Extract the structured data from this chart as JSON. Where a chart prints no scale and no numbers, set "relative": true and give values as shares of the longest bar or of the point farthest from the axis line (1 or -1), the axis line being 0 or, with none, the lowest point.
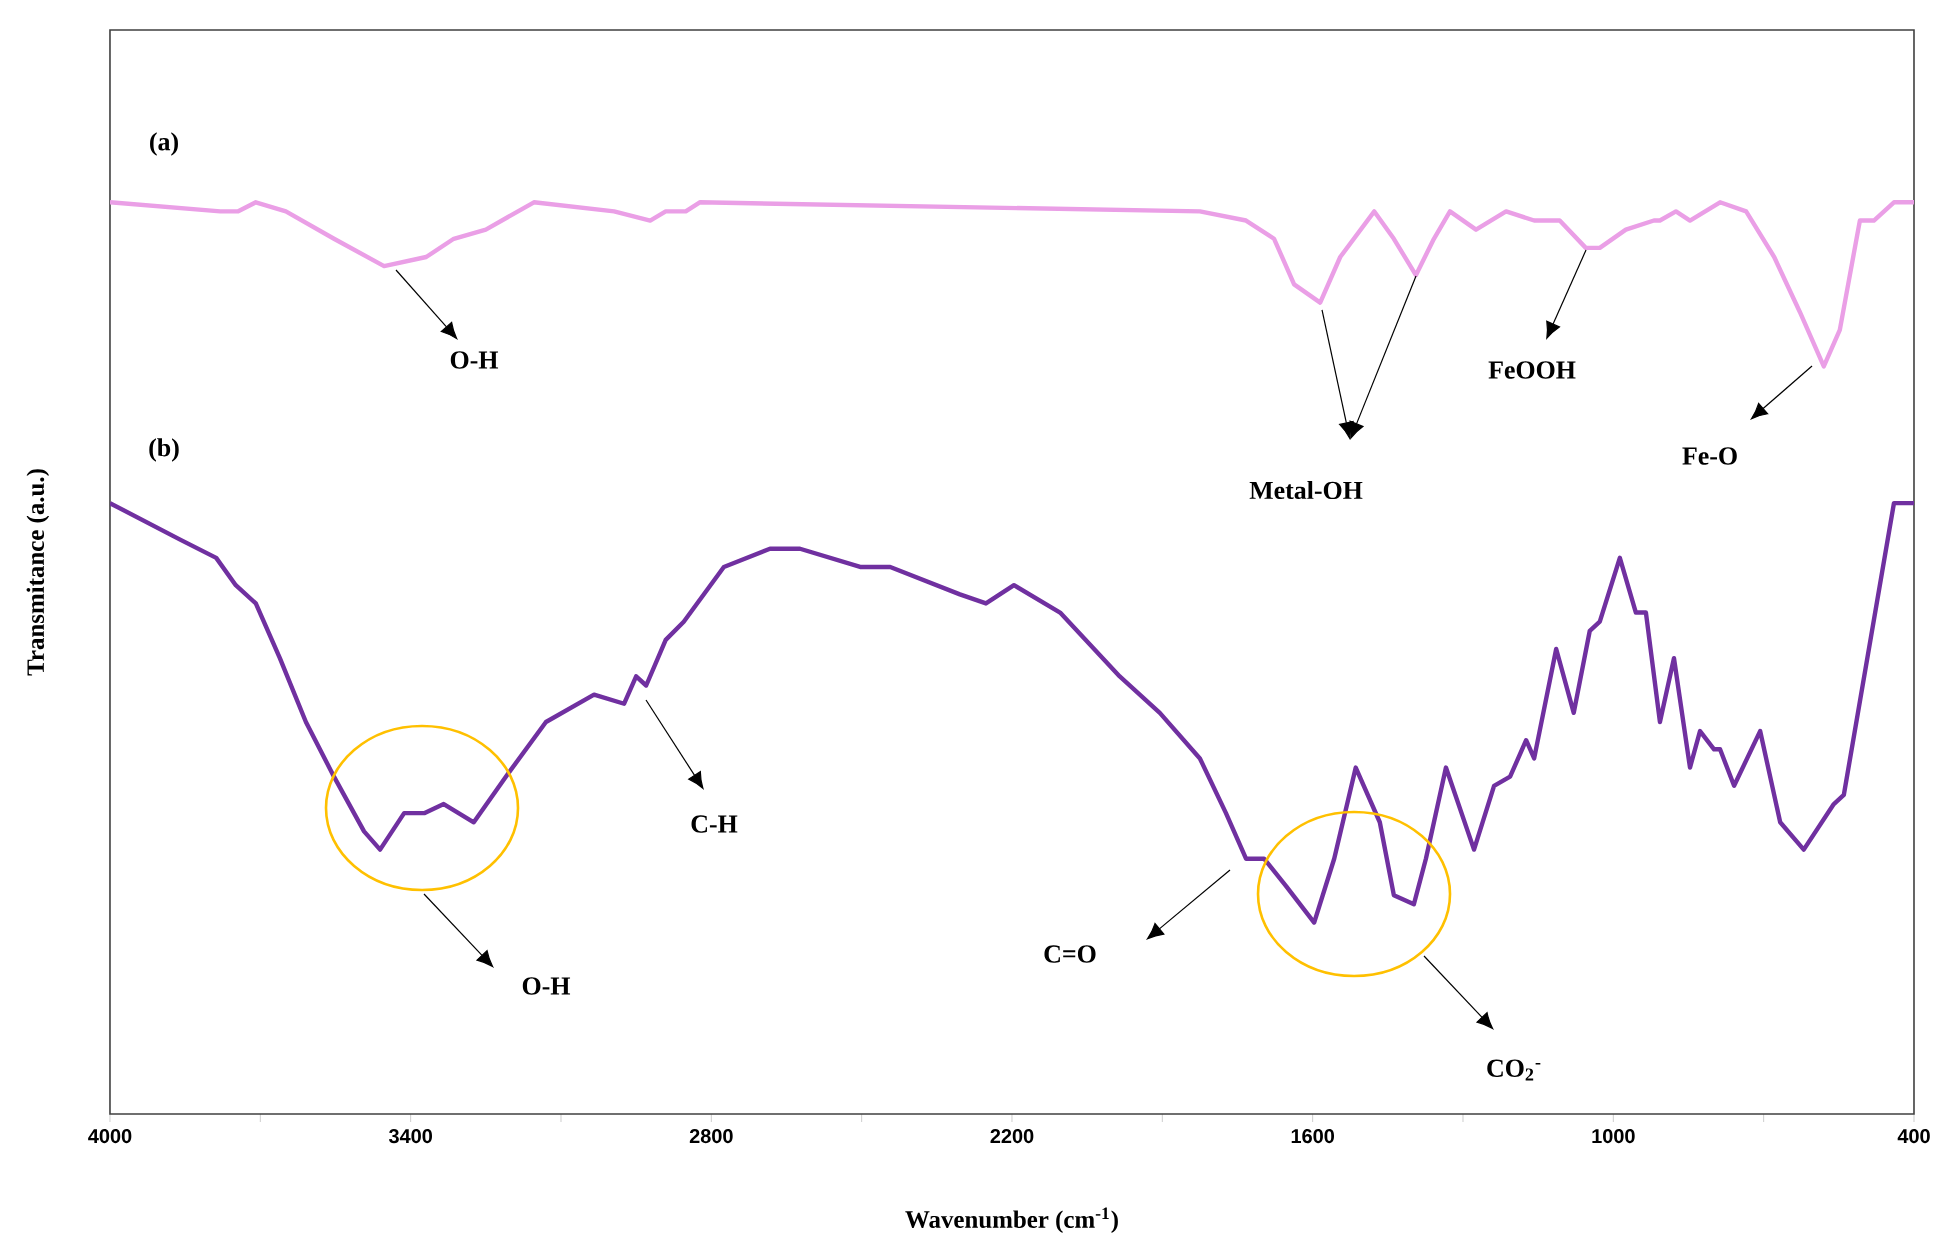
{
  "chart_data": {
    "type": "line",
    "relative": true,
    "tick_labels": "x",
    "line_style": "solid",
    "marker": "none",
    "xlabel": "Wavenumber (cm$^{-1}$)",
    "ylabel": "Transmitance (a.u.)",
    "xlim": [
      4000,
      400
    ],
    "xticks": [
      4000,
      {
        "value": 3700,
        "label": null
      },
      3400,
      {
        "value": 3100,
        "label": null
      },
      2800,
      {
        "value": 2500,
        "label": null
      },
      2200,
      {
        "value": 1900,
        "label": null
      },
      1600,
      {
        "value": 1300,
        "label": null
      },
      1000,
      {
        "value": 700,
        "label": null
      },
      400
    ],
    "series": [
      {
        "color": "#ea9fe6",
        "x": [
          4000,
          3780,
          3745,
          3709,
          3649,
          3553,
          3453,
          3369,
          3314,
          3250,
          3154,
          2994,
          2922,
          2891,
          2851,
          2823,
          1825,
          1733,
          1677,
          1637,
          1585,
          1545,
          1477,
          1438,
          1394,
          1358,
          1326,
          1274,
          1214,
          1158,
          1107,
          1055,
          1027,
          975,
          919,
          907,
          875,
          847,
          787,
          735,
          679,
          628,
          580,
          548,
          508,
          480,
          440,
          400
        ],
        "values": [
          1.0,
          0.99,
          0.99,
          1.0,
          0.99,
          0.96,
          0.93,
          0.94,
          0.96,
          0.97,
          1.0,
          0.99,
          0.98,
          0.99,
          0.99,
          1.0,
          0.99,
          0.98,
          0.96,
          0.91,
          0.89,
          0.94,
          0.99,
          0.96,
          0.92,
          0.96,
          0.99,
          0.97,
          0.99,
          0.98,
          0.98,
          0.95,
          0.95,
          0.97,
          0.98,
          0.98,
          0.99,
          0.98,
          1.0,
          0.99,
          0.94,
          0.88,
          0.82,
          0.86,
          0.98,
          0.98,
          1.0,
          1.0
        ]
      },
      {
        "color": "#7030a0",
        "x": [
          4000,
          3860,
          3788,
          3749,
          3709,
          3661,
          3609,
          3553,
          3493,
          3461,
          3413,
          3373,
          3334,
          3274,
          3210,
          3130,
          3034,
          2974,
          2950,
          2930,
          2891,
          2855,
          2775,
          2683,
          2623,
          2503,
          2443,
          2304,
          2252,
          2196,
          2104,
          1985,
          1905,
          1825,
          1773,
          1733,
          1697,
          1653,
          1597,
          1557,
          1514,
          1466,
          1438,
          1398,
          1374,
          1334,
          1278,
          1238,
          1206,
          1174,
          1158,
          1114,
          1079,
          1047,
          1027,
          987,
          955,
          935,
          907,
          879,
          847,
          827,
          799,
          787,
          759,
          707,
          667,
          620,
          560,
          540,
          440,
          400
        ],
        "values": [
          0.67,
          0.63,
          0.61,
          0.58,
          0.56,
          0.5,
          0.43,
          0.37,
          0.31,
          0.29,
          0.33,
          0.33,
          0.34,
          0.32,
          0.37,
          0.43,
          0.46,
          0.45,
          0.48,
          0.47,
          0.52,
          0.54,
          0.6,
          0.62,
          0.62,
          0.6,
          0.6,
          0.57,
          0.56,
          0.58,
          0.55,
          0.48,
          0.44,
          0.39,
          0.33,
          0.28,
          0.28,
          0.25,
          0.21,
          0.28,
          0.38,
          0.32,
          0.24,
          0.23,
          0.28,
          0.38,
          0.29,
          0.36,
          0.37,
          0.41,
          0.39,
          0.51,
          0.44,
          0.53,
          0.54,
          0.61,
          0.55,
          0.55,
          0.43,
          0.5,
          0.38,
          0.42,
          0.4,
          0.4,
          0.36,
          0.42,
          0.32,
          0.29,
          0.34,
          0.35,
          0.67,
          0.67
        ]
      }
    ],
    "annotations": [
      "(a)",
      "O-H",
      "Metal-OH",
      "FeOOH",
      "Fe-O",
      "(b)",
      "O-H",
      "C-H",
      "C=O",
      "CO$_{2}$$^{-}$"
    ]
  }
}
